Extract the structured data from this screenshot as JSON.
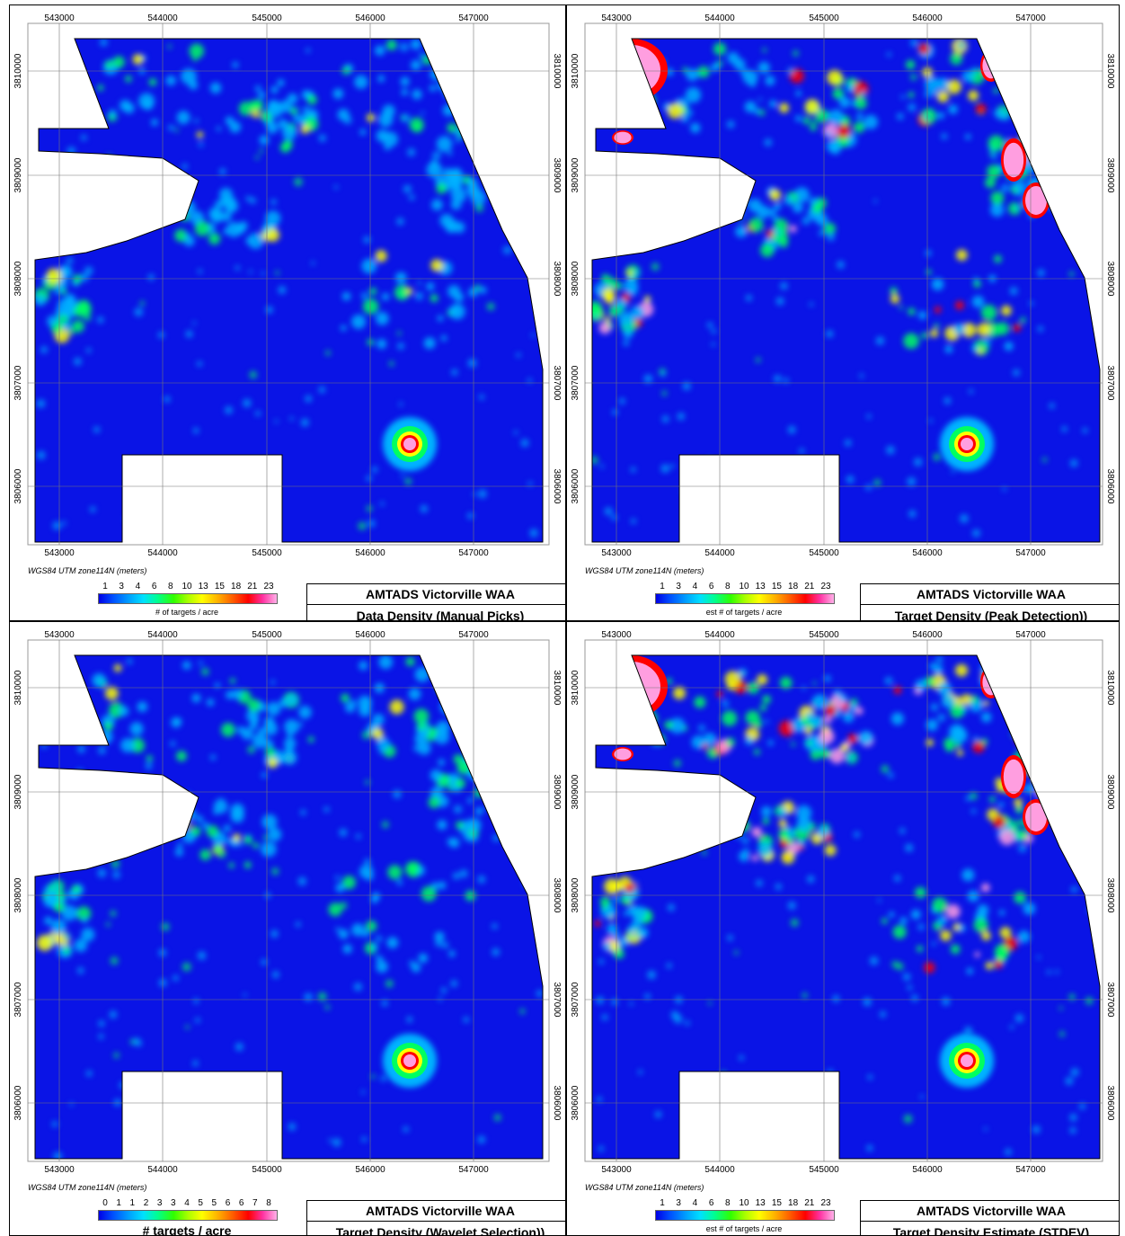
{
  "colors": {
    "background": "#0a14e6",
    "low": "#00b4ff",
    "mid": "#00ff60",
    "high": "#ffff00",
    "peak": "#ff0000",
    "max": "#ff9ee0"
  },
  "axes": {
    "x_ticks": [
      "543000",
      "544000",
      "545000",
      "546000",
      "547000"
    ],
    "y_ticks": [
      "3810000",
      "3809000",
      "3808000",
      "3807000",
      "3806000"
    ],
    "coord_label": "WGS84 UTM zone114N (meters)"
  },
  "panels": [
    {
      "id": "data-density",
      "title": "AMTADS Victorville WAA",
      "subtitle": "Data Density (Manual Picks)",
      "legend_ticks": [
        "1",
        "3",
        "4",
        "6",
        "8",
        "10",
        "13",
        "15",
        "18",
        "21",
        "23"
      ],
      "legend_caption": "# of targets / acre",
      "intensity": "low"
    },
    {
      "id": "peak-detection",
      "title": "AMTADS Victorville WAA",
      "subtitle": "Target Density (Peak Detection))",
      "legend_ticks": [
        "1",
        "3",
        "4",
        "6",
        "8",
        "10",
        "13",
        "15",
        "18",
        "21",
        "23"
      ],
      "legend_caption": "est # of targets / acre",
      "intensity": "high"
    },
    {
      "id": "wavelet-selection",
      "title": "AMTADS Victorville WAA",
      "subtitle": "Target Density (Wavelet Selection))",
      "legend_ticks": [
        "0",
        "1",
        "1",
        "2",
        "3",
        "3",
        "4",
        "5",
        "5",
        "6",
        "6",
        "7",
        "8"
      ],
      "legend_caption": "# targets / acre",
      "intensity": "low"
    },
    {
      "id": "stdev-estimate",
      "title": "AMTADS Victorville WAA",
      "subtitle": "Target Density Estimate (STDEV)",
      "legend_ticks": [
        "1",
        "3",
        "4",
        "6",
        "8",
        "10",
        "13",
        "15",
        "18",
        "21",
        "23"
      ],
      "legend_caption": "est # of targets / acre",
      "intensity": "very-high"
    }
  ]
}
